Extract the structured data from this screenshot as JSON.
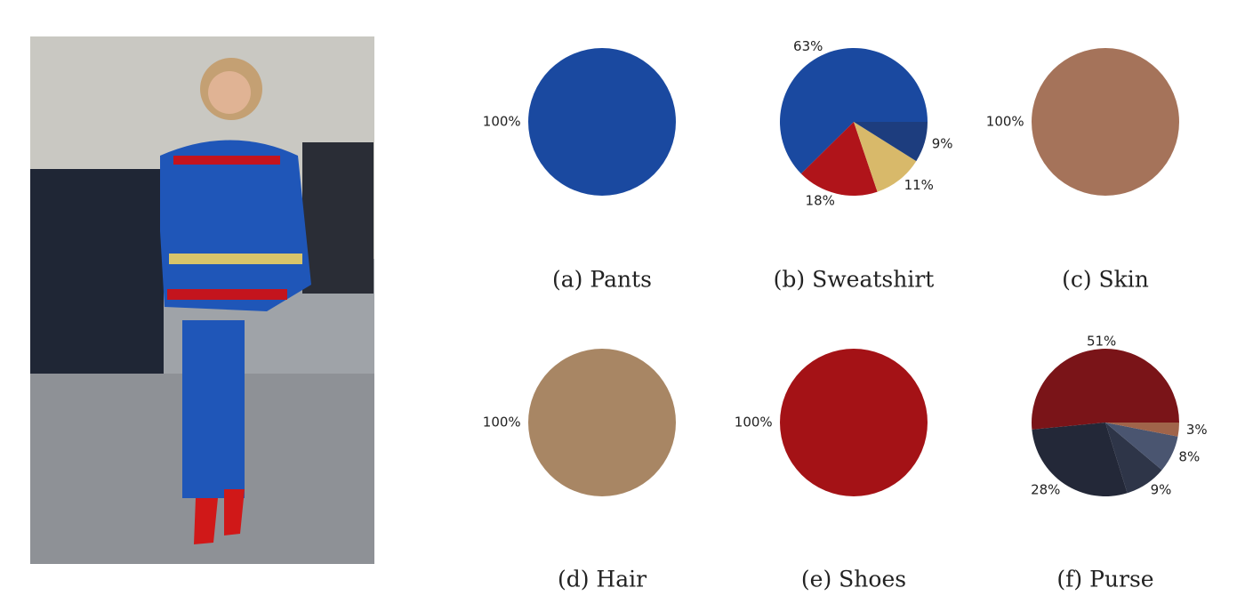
{
  "chart_data": [
    {
      "type": "pie",
      "title": "(a) Pants",
      "values": [
        100
      ],
      "value_labels": [
        "100%"
      ],
      "colors": [
        "#1a49a0"
      ]
    },
    {
      "type": "pie",
      "title": "(b) Sweatshirt",
      "values": [
        63,
        18,
        11,
        9
      ],
      "value_labels": [
        "63%",
        "18%",
        "11%",
        "9%"
      ],
      "colors": [
        "#1a49a0",
        "#b0141a",
        "#d8b96a",
        "#1d3d7e"
      ]
    },
    {
      "type": "pie",
      "title": "(c) Skin",
      "values": [
        100
      ],
      "value_labels": [
        "100%"
      ],
      "colors": [
        "#a5735a"
      ]
    },
    {
      "type": "pie",
      "title": "(d) Hair",
      "values": [
        100
      ],
      "value_labels": [
        "100%"
      ],
      "colors": [
        "#a88664"
      ]
    },
    {
      "type": "pie",
      "title": "(e) Shoes",
      "values": [
        100
      ],
      "value_labels": [
        "100%"
      ],
      "colors": [
        "#a41216"
      ]
    },
    {
      "type": "pie",
      "title": "(f) Purse",
      "values": [
        51,
        28,
        9,
        8,
        3
      ],
      "value_labels": [
        "51%",
        "28%",
        "9%",
        "8%",
        "3%"
      ],
      "colors": [
        "#7a1418",
        "#232838",
        "#2e3548",
        "#4a5570",
        "#a0644a"
      ]
    }
  ]
}
